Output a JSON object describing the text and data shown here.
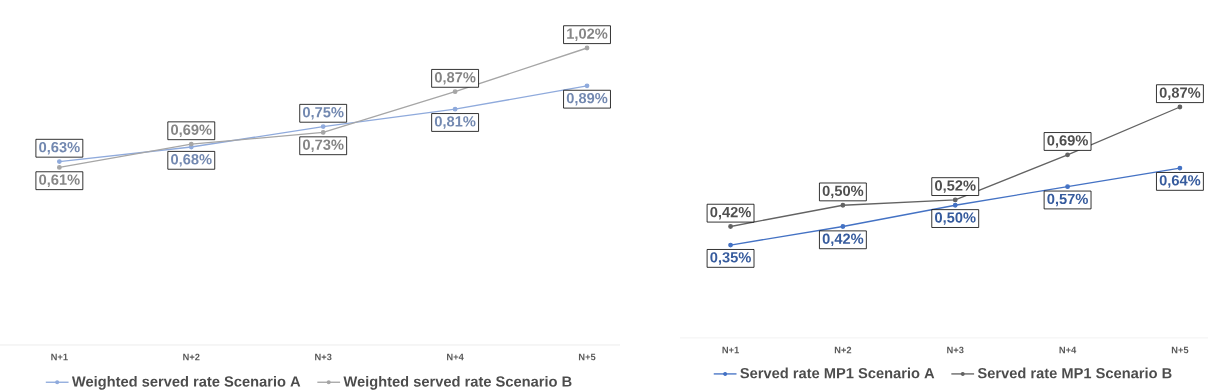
{
  "chart_data": [
    {
      "type": "line",
      "categories": [
        "N+1",
        "N+2",
        "N+3",
        "N+4",
        "N+5"
      ],
      "legend": "bottom",
      "marker": "circle",
      "grid": false,
      "tick_labels": "x",
      "data_labels": false,
      "series": [
        {
          "name": "Weighted served rate Scenario A",
          "color": "#8faadc",
          "values": [
            0.63,
            0.68,
            0.75,
            0.81,
            0.89
          ],
          "value_labels": [
            "0,63%",
            "0,68%",
            "0,75%",
            "0,81%",
            "0,89%"
          ]
        },
        {
          "name": "Weighted served rate Scenario B",
          "color": "#a6a6a6",
          "values": [
            0.61,
            0.69,
            0.73,
            0.87,
            1.02
          ],
          "value_labels": [
            "0,61%",
            "0,69%",
            "0,73%",
            "0,87%",
            "1,02%"
          ]
        }
      ]
    },
    {
      "type": "line",
      "categories": [
        "N+1",
        "N+2",
        "N+3",
        "N+4",
        "N+5"
      ],
      "legend": "bottom",
      "marker": "circle",
      "grid": false,
      "tick_labels": "x",
      "data_labels": false,
      "series": [
        {
          "name": "Served rate MP1 Scenario A",
          "color": "#4472c4",
          "values": [
            0.35,
            0.42,
            0.5,
            0.57,
            0.64
          ],
          "value_labels": [
            "0,35%",
            "0,42%",
            "0,50%",
            "0,57%",
            "0,64%"
          ]
        },
        {
          "name": "Served rate MP1 Scenario B",
          "color": "#636363",
          "values": [
            0.42,
            0.5,
            0.52,
            0.69,
            0.87
          ],
          "value_labels": [
            "0,42%",
            "0,50%",
            "0,52%",
            "0,69%",
            "0,87%"
          ]
        }
      ]
    }
  ]
}
